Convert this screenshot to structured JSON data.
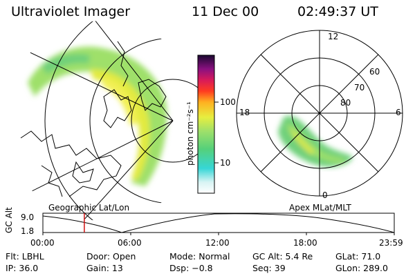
{
  "header": {
    "title": "Ultraviolet Imager",
    "date": "11 Dec 00",
    "time": "02:49:37 UT"
  },
  "left_panel": {
    "caption": "Geographic Lat/Lon"
  },
  "colorbar": {
    "unit_label": "photon cm⁻²s⁻¹",
    "ticks": [
      "100",
      "10"
    ]
  },
  "right_panel": {
    "caption": "Apex MLat/MLT",
    "mlt_labels": [
      "12",
      "18",
      "6",
      "0"
    ],
    "lat_labels": [
      "60",
      "70",
      "80"
    ]
  },
  "timeline": {
    "y_label": "GC Alt",
    "y_ticks": [
      "9.0",
      "1.8"
    ],
    "x_ticks": [
      "00:00",
      "06:00",
      "12:00",
      "18:00",
      "23:59"
    ],
    "marker_time_hours": 2.83
  },
  "info": {
    "filter": "Flt: LBHL",
    "door": "Door: Open",
    "mode": "Mode: Normal",
    "gc_alt": "GC Alt: 5.4 Re",
    "glat": "GLat:  71.0",
    "ip": "IP: 36.0",
    "gain": "Gain: 13",
    "dsp": "Dsp:   −0.8",
    "seq": "Seq: 39",
    "glon": "GLon: 289.0"
  }
}
